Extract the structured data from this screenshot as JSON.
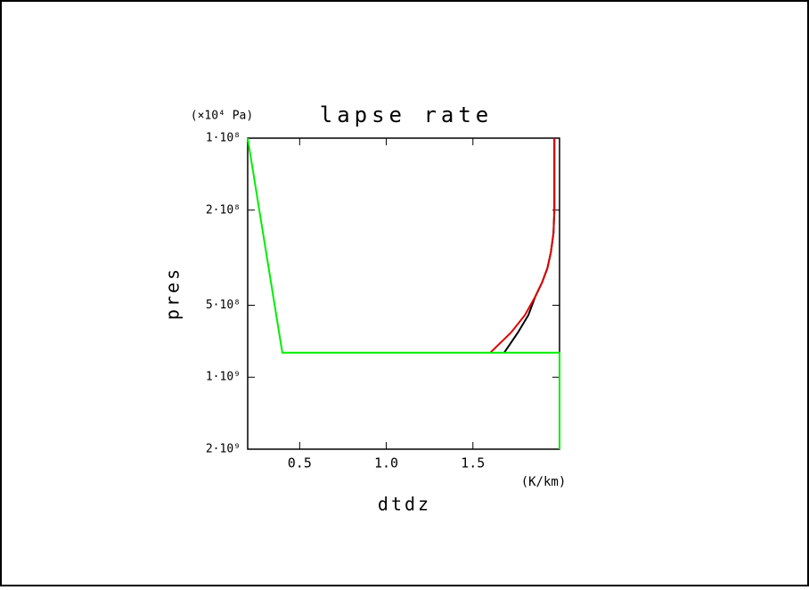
{
  "chart_data": {
    "type": "line",
    "title": "lapse rate",
    "x_label": "dtdz",
    "x_unit": "(K/km)",
    "y_label": "pres",
    "y_unit": "(×10⁴ Pa)",
    "xlim": [
      0.2,
      2.0
    ],
    "xticks": [
      0.5,
      {
        "value": 1.0,
        "label": "1.0"
      },
      1.5
    ],
    "ylim": [
      100000000,
      2000000000
    ],
    "y_scale": "log",
    "y_reversed": true,
    "yticks": [
      {
        "value": 100000000,
        "label": "1·10⁸"
      },
      {
        "value": 200000000,
        "label": "2·10⁸"
      },
      {
        "value": 500000000,
        "label": "5·10⁸"
      },
      {
        "value": 1000000000,
        "label": "1·10⁹"
      },
      {
        "value": 2000000000,
        "label": "2·10⁹"
      }
    ],
    "series": [
      {
        "color": "#000000",
        "x": [
          1.97,
          1.97,
          1.965,
          1.95,
          1.93,
          1.9,
          1.86,
          1.82,
          1.76,
          1.68
        ],
        "values": [
          100000000,
          200000000,
          250000000,
          300000000,
          350000000,
          400000000,
          460000000,
          550000000,
          650000000,
          790000000
        ]
      },
      {
        "color": "#e00000",
        "x": [
          1.97,
          1.97,
          1.965,
          1.95,
          1.93,
          1.9,
          1.86,
          1.8,
          1.72,
          1.6
        ],
        "values": [
          100000000,
          200000000,
          250000000,
          300000000,
          350000000,
          400000000,
          460000000,
          550000000,
          650000000,
          790000000
        ]
      },
      {
        "color": "#00ee00",
        "x": [
          0.2,
          0.4,
          2.0,
          2.0
        ],
        "values": [
          100000000,
          790000000,
          790000000,
          2000000000
        ]
      }
    ]
  }
}
